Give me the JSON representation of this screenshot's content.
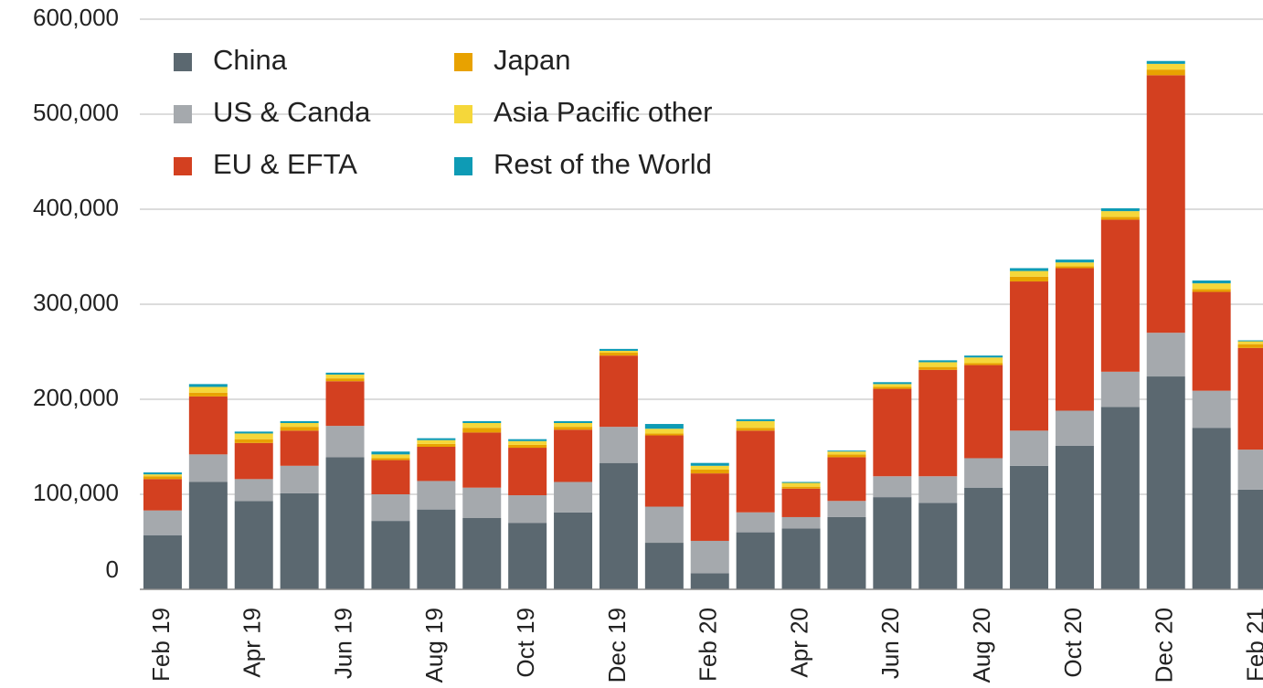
{
  "chart_data": {
    "type": "stacked_bar",
    "categories": [
      "Feb 19",
      null,
      "Apr 19",
      null,
      "Jun 19",
      null,
      "Aug 19",
      null,
      "Oct 19",
      null,
      "Dec 19",
      null,
      "Feb 20",
      null,
      "Apr 20",
      null,
      "Jun 20",
      null,
      "Aug 20",
      null,
      "Oct 20",
      null,
      "Dec 20",
      null,
      "Feb 21"
    ],
    "series": [
      {
        "name": "China",
        "color": "#5b6870",
        "values": [
          57000,
          113000,
          93000,
          101000,
          139000,
          72000,
          84000,
          75000,
          70000,
          81000,
          133000,
          49000,
          17000,
          60000,
          64000,
          76000,
          97000,
          91000,
          107000,
          130000,
          151000,
          192000,
          224000,
          170000,
          105000
        ]
      },
      {
        "name": "US & Canda",
        "color": "#a5a9ad",
        "values": [
          26000,
          29000,
          23000,
          29000,
          33000,
          28000,
          30000,
          32000,
          29000,
          32000,
          38000,
          38000,
          34000,
          21000,
          12000,
          17000,
          22000,
          28000,
          31000,
          37000,
          37000,
          37000,
          46000,
          39000,
          42000
        ]
      },
      {
        "name": "EU & EFTA",
        "color": "#d34020",
        "values": [
          33000,
          61000,
          38000,
          37000,
          47000,
          36000,
          36000,
          58000,
          50000,
          55000,
          75000,
          75000,
          71000,
          86000,
          30000,
          46000,
          92000,
          112000,
          98000,
          157000,
          150000,
          160000,
          271000,
          104000,
          107000
        ]
      },
      {
        "name": "Japan",
        "color": "#e8a200",
        "values": [
          3000,
          4000,
          4000,
          4000,
          3000,
          2000,
          3000,
          5000,
          3000,
          3000,
          3000,
          2000,
          4000,
          3000,
          2000,
          3000,
          2000,
          3000,
          2000,
          5000,
          2000,
          3000,
          6000,
          3000,
          4000
        ]
      },
      {
        "name": "Asia Pacific other",
        "color": "#f5d73a",
        "values": [
          2000,
          6000,
          6000,
          4000,
          4000,
          4000,
          4000,
          5000,
          4000,
          4000,
          2000,
          5000,
          4000,
          7000,
          4000,
          3000,
          3000,
          5000,
          6000,
          6000,
          4000,
          6000,
          6000,
          6000,
          3000
        ]
      },
      {
        "name": "Rest of the World",
        "color": "#0e9bb5",
        "values": [
          2000,
          3000,
          2000,
          2000,
          2000,
          3000,
          2000,
          2000,
          2000,
          2000,
          2000,
          5000,
          3000,
          2000,
          1000,
          1000,
          2000,
          2000,
          2000,
          3000,
          3000,
          3000,
          3000,
          3000,
          1000
        ]
      }
    ],
    "ylim": [
      0,
      600000
    ],
    "yticks": [
      0,
      {
        "value": 100000,
        "label": "100,000"
      },
      {
        "value": 200000,
        "label": "200,000"
      },
      {
        "value": 300000,
        "label": "300,000"
      },
      {
        "value": 400000,
        "label": "400,000"
      },
      {
        "value": 500000,
        "label": "500,000"
      },
      {
        "value": 600000,
        "label": "600,000"
      }
    ],
    "grid": true
  }
}
